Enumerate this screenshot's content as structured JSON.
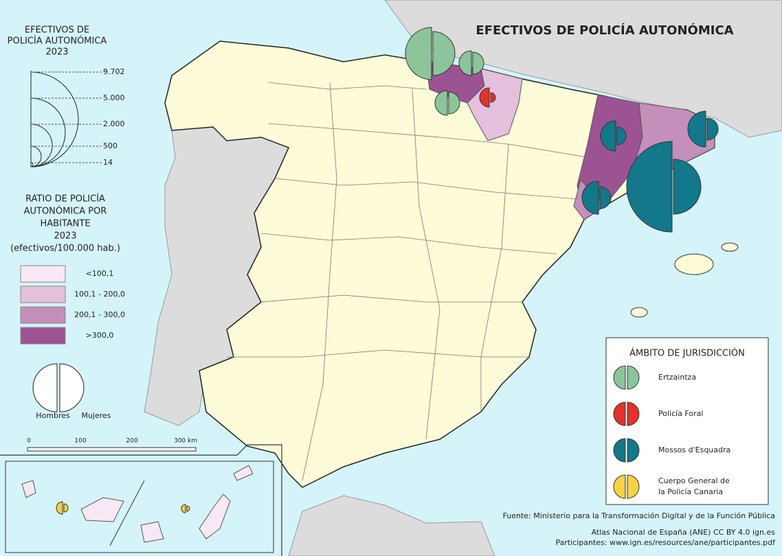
{
  "title": "EFECTIVOS DE POLICÍA AUTONÓMICA",
  "size_legend": {
    "title": [
      "EFECTIVOS DE",
      "POLICÍA AUTONÓMICA",
      "2023"
    ],
    "values": [
      "9.702",
      "5.000",
      "2.000",
      "500",
      "14"
    ]
  },
  "ratio_legend": {
    "title": [
      "RATIO DE POLICÍA",
      "AUTONÓMICA POR",
      "HABITANTE",
      "2023",
      "(efectivos/100.000 hab.)"
    ],
    "classes": [
      {
        "label": "<100,1",
        "color": "#f8e8f3"
      },
      {
        "label": "100,1 - 200,0",
        "color": "#e4c0dc"
      },
      {
        "label": "200,1 - 300,0",
        "color": "#c48fbb"
      },
      {
        "label": ">300,0",
        "color": "#9c5394"
      }
    ]
  },
  "sex_legend": {
    "labels": [
      "Hombres",
      "Mujeres"
    ]
  },
  "scale_bar": {
    "labels": [
      "0",
      "100",
      "200",
      "300 km"
    ]
  },
  "jurisdiction_legend": {
    "title": "ÁMBITO DE JURISDICCIÓN",
    "items": [
      {
        "lines": [
          "Ertzaintza"
        ],
        "color": "#8cc59b"
      },
      {
        "lines": [
          "Policía Foral"
        ],
        "color": "#e2332b"
      },
      {
        "lines": [
          "Mossos d'Esquadra"
        ],
        "color": "#12788a"
      },
      {
        "lines": [
          "Cuerpo General de",
          "la Policía Canaria"
        ],
        "color": "#f6d245"
      }
    ]
  },
  "source": [
    "Fuente: Ministerio para la Transformación Digital y de la Función Pública",
    "Atlas Nacional de España (ANE) CC BY 4.0 ign.es",
    "Participantes: www.ign.es/resources/ane/participantes.pdf"
  ]
}
